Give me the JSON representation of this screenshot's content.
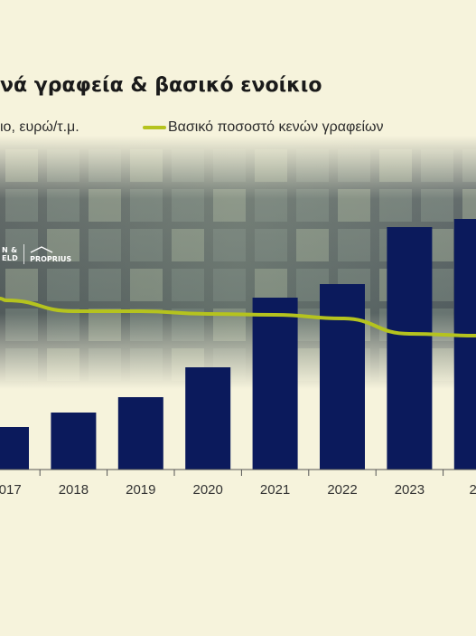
{
  "header": {
    "title": "νά γραφεία & βασικό ενοίκιο",
    "legend_bar_label": "ιο, ευρώ/τ.μ.",
    "legend_line_label": "Βασικό ποσοστό κενών γραφείων"
  },
  "logo": {
    "left_text_line1": "N &",
    "left_text_line2": "ELD",
    "right_text": "PROPRIUS"
  },
  "colors": {
    "background": "#f6f3dc",
    "bar": "#0b1a5c",
    "line": "#b5c31e",
    "tick_label": "#333333"
  },
  "chart_data": {
    "type": "bar",
    "categories": [
      "2017",
      "2018",
      "2019",
      "2020",
      "2021",
      "2022",
      "2023",
      "20"
    ],
    "series": [
      {
        "type": "bar",
        "values": [
          47,
          63,
          80,
          113,
          190,
          205,
          268,
          277
        ]
      },
      {
        "type": "line",
        "values": [
          187,
          175,
          175,
          172,
          171,
          167,
          150,
          148
        ]
      }
    ],
    "ylim": [
      0,
      300
    ],
    "grid": false
  }
}
